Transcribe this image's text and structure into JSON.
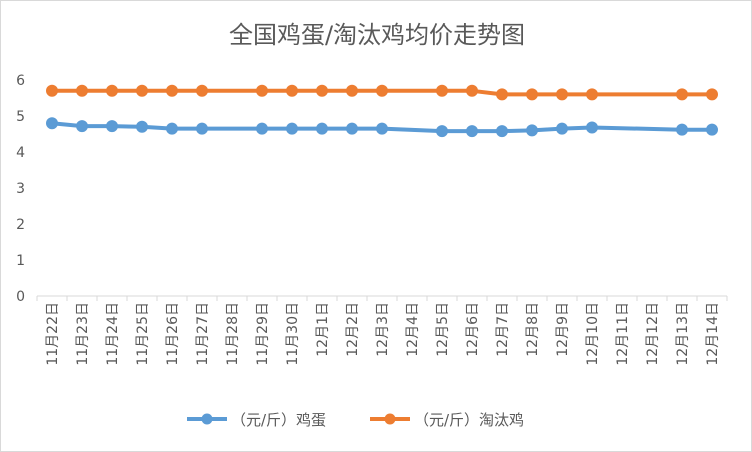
{
  "chart_data": {
    "type": "line",
    "title": "全国鸡蛋/淘汰鸡均价走势图",
    "categories": [
      "11月22日",
      "11月23日",
      "11月24日",
      "11月25日",
      "11月26日",
      "11月27日",
      "11月28日",
      "11月29日",
      "11月30日",
      "12月1日",
      "12月2日",
      "12月3日",
      "12月4日",
      "12月5日",
      "12月6日",
      "12月7日",
      "12月8日",
      "12月9日",
      "12月10日",
      "12月11日",
      "12月12日",
      "12月13日",
      "12月14日"
    ],
    "ylim": [
      0,
      6
    ],
    "yticks": [
      "0",
      "1",
      "2",
      "3",
      "4",
      "5",
      "6"
    ],
    "grid": false,
    "legend_position": "bottom",
    "series": [
      {
        "name": "（元/斤）鸡蛋",
        "color": "#5b9bd5",
        "values": [
          4.8,
          4.72,
          4.72,
          4.7,
          4.65,
          4.65,
          null,
          4.65,
          4.65,
          4.65,
          4.65,
          4.65,
          null,
          4.58,
          4.58,
          4.58,
          4.6,
          4.65,
          4.68,
          null,
          null,
          4.62,
          4.62
        ]
      },
      {
        "name": "（元/斤）淘汰鸡",
        "color": "#ed7d31",
        "values": [
          5.7,
          5.7,
          5.7,
          5.7,
          5.7,
          5.7,
          null,
          5.7,
          5.7,
          5.7,
          5.7,
          5.7,
          null,
          5.7,
          5.7,
          5.6,
          5.6,
          5.6,
          5.6,
          null,
          null,
          5.6,
          5.6
        ]
      }
    ]
  }
}
